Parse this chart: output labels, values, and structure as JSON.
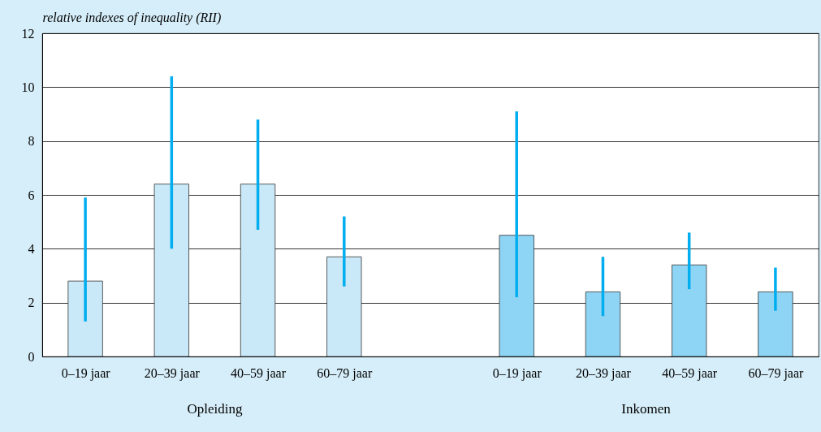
{
  "chart_data": {
    "type": "bar",
    "ylabel": "relative indexes of inequality (RII)",
    "annotations": [
      "Opleiding",
      "Inkomen"
    ],
    "categories": [
      "0–19 jaar",
      "20–39 jaar",
      "40–59 jaar",
      "60–79 jaar",
      null,
      "0–19 jaar",
      "20–39 jaar",
      "40–59 jaar",
      "60–79 jaar"
    ],
    "series": [
      {
        "color": "#c9e9f8",
        "values": [
          2.8,
          6.4,
          6.4,
          3.7,
          null,
          null,
          null,
          null,
          null
        ],
        "errors": [
          [
            1.3,
            5.9
          ],
          [
            4.0,
            10.4
          ],
          [
            4.7,
            8.8
          ],
          [
            2.6,
            5.2
          ],
          null,
          null,
          null,
          null,
          null
        ]
      },
      {
        "color": "#8ed5f5",
        "values": [
          null,
          null,
          null,
          null,
          null,
          4.5,
          2.4,
          3.4,
          2.4
        ],
        "errors": [
          null,
          null,
          null,
          null,
          null,
          [
            2.2,
            9.1
          ],
          [
            1.5,
            3.7
          ],
          [
            2.5,
            4.6
          ],
          [
            1.7,
            3.3
          ]
        ]
      }
    ],
    "ylim": [
      0,
      12
    ],
    "yticks": [
      0,
      2,
      4,
      6,
      8,
      10,
      12
    ],
    "grid": "y"
  }
}
